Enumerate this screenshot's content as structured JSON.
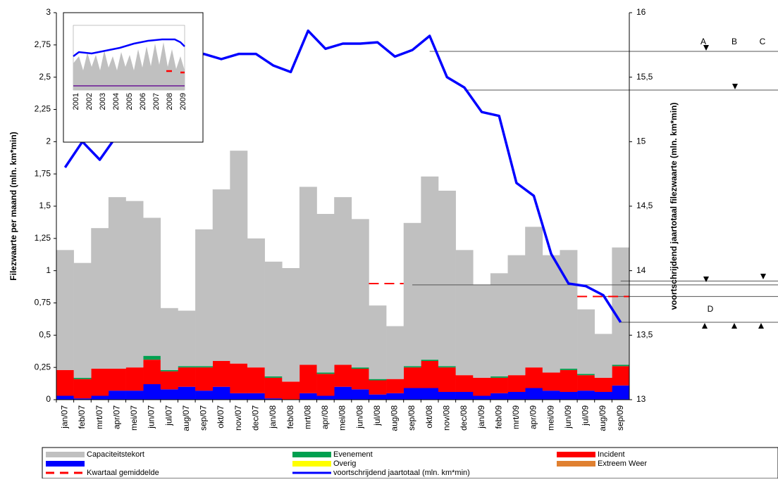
{
  "chart_data": {
    "type": "bar",
    "y_label": "Filezwaarte per maand (mln. km*min)",
    "y2_label": "voortschrijdend jaartotaal  filezwaarte (mln. km*min)",
    "categories": [
      "jan/07",
      "feb/07",
      "mrt/07",
      "apr/07",
      "mei/07",
      "jun/07",
      "jul/07",
      "aug/07",
      "sep/07",
      "okt/07",
      "nov/07",
      "dec/07",
      "jan/08",
      "feb/08",
      "mrt/08",
      "apr/08",
      "mei/08",
      "jun/08",
      "jul/08",
      "aug/08",
      "sep/08",
      "okt/08",
      "nov/08",
      "dec/08",
      "jan/09",
      "feb/09",
      "mrt/09",
      "apr/09",
      "mei/09",
      "jun/09",
      "jul/09",
      "aug/09",
      "sep/09"
    ],
    "ylim": [
      0,
      3
    ],
    "yticks": [
      0,
      {
        "value": 0.25,
        "label": "0,25"
      },
      {
        "value": 0.5,
        "label": "0,5"
      },
      {
        "value": 0.75,
        "label": "0,75"
      },
      1,
      {
        "value": 1.25,
        "label": "1,25"
      },
      {
        "value": 1.5,
        "label": "1,5"
      },
      {
        "value": 1.75,
        "label": "1,75"
      },
      2,
      {
        "value": 2.25,
        "label": "2,25"
      },
      {
        "value": 2.5,
        "label": "2,5"
      },
      {
        "value": 2.75,
        "label": "2,75"
      },
      3
    ],
    "y2lim": [
      13,
      16
    ],
    "y2ticks": [
      13,
      {
        "value": 13.5,
        "label": "13,5"
      },
      14,
      {
        "value": 14.5,
        "label": "14,5"
      },
      15,
      {
        "value": 15.5,
        "label": "15,5"
      },
      16
    ],
    "series": [
      {
        "color": "#0000ff",
        "stack": true,
        "values": [
          0.03,
          0.01,
          0.03,
          0.07,
          0.07,
          0.12,
          0.08,
          0.1,
          0.07,
          0.1,
          0.05,
          0.05,
          0.01,
          0,
          0.05,
          0.03,
          0.1,
          0.08,
          0.04,
          0.05,
          0.09,
          0.09,
          0.06,
          0.06,
          0.03,
          0.05,
          0.06,
          0.09,
          0.07,
          0.06,
          0.07,
          0.06,
          0.11
        ]
      },
      {
        "name": "Incident",
        "color": "#ff0000",
        "stack": true,
        "values": [
          0.2,
          0.15,
          0.21,
          0.17,
          0.18,
          0.19,
          0.14,
          0.15,
          0.18,
          0.2,
          0.23,
          0.2,
          0.16,
          0.14,
          0.22,
          0.17,
          0.17,
          0.16,
          0.11,
          0.11,
          0.16,
          0.21,
          0.19,
          0.13,
          0.14,
          0.12,
          0.13,
          0.16,
          0.14,
          0.17,
          0.12,
          0.11,
          0.15
        ]
      },
      {
        "name": "Evenement",
        "color": "#00a050",
        "stack": true,
        "values": [
          0,
          0.01,
          0,
          0,
          0,
          0.03,
          0.01,
          0.01,
          0.01,
          0,
          0,
          0,
          0.01,
          0,
          0,
          0.01,
          0,
          0.01,
          0.01,
          0,
          0.01,
          0.01,
          0.01,
          0,
          0,
          0.01,
          0,
          0,
          0,
          0.01,
          0.01,
          0,
          0.01
        ]
      },
      {
        "name": "Overig",
        "color": "#ffff00",
        "stack": true,
        "values": [
          0,
          0,
          0,
          0,
          0,
          0,
          0,
          0,
          0,
          0,
          0,
          0,
          0,
          0,
          0,
          0,
          0,
          0,
          0,
          0,
          0,
          0,
          0,
          0,
          0,
          0,
          0,
          0,
          0,
          0,
          0,
          0,
          0
        ]
      },
      {
        "name": "Extreem Weer",
        "color": "#e08030",
        "stack": true,
        "values": [
          0,
          0,
          0,
          0,
          0,
          0,
          0,
          0,
          0,
          0,
          0,
          0,
          0,
          0,
          0,
          0,
          0,
          0,
          0,
          0,
          0,
          0,
          0,
          0,
          0,
          0,
          0,
          0,
          0,
          0,
          0,
          0,
          0
        ]
      },
      {
        "name": "Capaciteitstekort",
        "color": "#c0c0c0",
        "stack": true,
        "values": [
          0.93,
          0.89,
          1.09,
          1.33,
          1.29,
          1.07,
          0.48,
          0.43,
          1.06,
          1.33,
          1.65,
          1.0,
          0.89,
          0.88,
          1.38,
          1.23,
          1.3,
          1.15,
          0.57,
          0.41,
          1.11,
          1.42,
          1.36,
          0.97,
          0.72,
          0.8,
          0.93,
          1.09,
          0.91,
          0.92,
          0.5,
          0.34,
          0.91
        ]
      },
      {
        "name": "Kwartaal gemiddelde",
        "color": "#ff0000",
        "dashed": true,
        "values": [
          null,
          null,
          null,
          null,
          null,
          null,
          null,
          null,
          null,
          null,
          null,
          null,
          null,
          null,
          null,
          null,
          null,
          null,
          0.9,
          0.9,
          null,
          null,
          null,
          null,
          null,
          null,
          null,
          null,
          null,
          null,
          0.8,
          0.8,
          0.8
        ]
      },
      {
        "name": "voortschrijdend jaartotaal (mln. km*min)",
        "color": "#0000ff",
        "axis": "y2",
        "values": [
          14.8,
          15.0,
          14.86,
          15.05,
          15.28,
          15.52,
          15.62,
          15.66,
          15.68,
          15.64,
          15.68,
          15.68,
          15.59,
          15.54,
          15.86,
          15.72,
          15.76,
          15.76,
          15.77,
          15.66,
          15.71,
          15.82,
          15.5,
          15.42,
          15.23,
          15.2,
          14.68,
          14.58,
          14.13,
          13.9,
          13.88,
          13.81,
          13.6
        ]
      }
    ],
    "reference_lines": [
      {
        "from": "okt/08",
        "value": 15.7
      },
      {
        "from": "dec/08",
        "value": 15.4
      },
      {
        "from": "sep/08",
        "value": 13.89
      },
      {
        "from": "sep/09",
        "value": 13.92
      },
      {
        "from": "aug/09",
        "value": 13.8
      },
      {
        "from": "sep/09",
        "value": 13.6
      }
    ],
    "markers": [
      "A",
      "B",
      "C",
      "D"
    ],
    "inset": {
      "categories": [
        "2001",
        "2002",
        "2003",
        "2004",
        "2005",
        "2006",
        "2007",
        "2008",
        "2009"
      ]
    }
  }
}
